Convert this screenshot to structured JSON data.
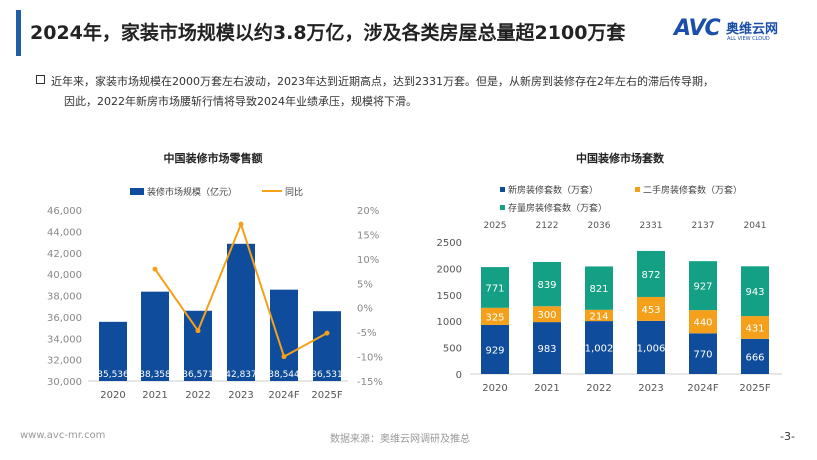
{
  "header": {
    "title": "2024年，家装市场规模以约3.8万亿，涉及各类房屋总量超2100万套",
    "logo_text": "AVC",
    "logo_cn": "奥维云网",
    "logo_en": "ALL VIEW CLOUD"
  },
  "summary": {
    "line1": "近年来，家装市场规模在2000万套左右波动，2023年达到近期高点，达到2331万套。但是，从新房到装修存在2年左右的滞后传导期，",
    "line2": "因此，2022年新房市场腰斩行情将导致2024年业绩承压，规模将下滑。"
  },
  "footer": {
    "url": "www.avc-mr.com",
    "source": "数据来源：奥维云网调研及推总",
    "page": "-3-"
  },
  "colors": {
    "blue": "#0f4c9c",
    "orange": "#f5a01a",
    "teal": "#14a084"
  },
  "chart_data": [
    {
      "type": "bar",
      "title": "中国装修市场零售额",
      "categories": [
        "2020",
        "2021",
        "2022",
        "2023",
        "2024F",
        "2025F"
      ],
      "series": [
        {
          "name": "装修市场规模（亿元）",
          "axis": "left",
          "values": [
            35536,
            38358,
            36571,
            42837,
            38544,
            36531
          ],
          "labels": [
            "35,536",
            "38,358",
            "36,571",
            "42,837",
            "38,544",
            "36,531"
          ]
        },
        {
          "name": "同比",
          "axis": "right",
          "type": "line",
          "values": [
            null,
            7.9,
            -4.7,
            17.1,
            -10.0,
            -5.2
          ]
        }
      ],
      "ylim": [
        30000,
        46000
      ],
      "yticks": [
        "30,000",
        "32,000",
        "34,000",
        "36,000",
        "38,000",
        "40,000",
        "42,000",
        "44,000",
        "46,000"
      ],
      "y2lim": [
        -15,
        20
      ],
      "y2ticks": [
        "-15%",
        "-10%",
        "-5%",
        "0%",
        "5%",
        "10%",
        "15%",
        "20%"
      ],
      "legend": "top"
    },
    {
      "type": "bar",
      "stacked": true,
      "title": "中国装修市场套数",
      "categories": [
        "2020",
        "2021",
        "2022",
        "2023",
        "2024F",
        "2025F"
      ],
      "series": [
        {
          "name": "新房装修套数（万套）",
          "values": [
            929,
            983,
            1002,
            1006,
            770,
            666
          ],
          "labels": [
            "929",
            "983",
            "1,002",
            "1,006",
            "770",
            "666"
          ]
        },
        {
          "name": "二手房装修套数（万套）",
          "values": [
            325,
            300,
            214,
            453,
            440,
            431
          ],
          "labels": [
            "325",
            "300",
            "214",
            "453",
            "440",
            "431"
          ]
        },
        {
          "name": "存量房装修套数（万套）",
          "values": [
            771,
            839,
            821,
            872,
            927,
            943
          ],
          "labels": [
            "771",
            "839",
            "821",
            "872",
            "927",
            "943"
          ]
        }
      ],
      "totals": [
        "2025",
        "2122",
        "2036",
        "2331",
        "2137",
        "2041"
      ],
      "ylim": [
        0,
        2500
      ],
      "yticks": [
        "0",
        "500",
        "1000",
        "1500",
        "2000",
        "2500"
      ],
      "legend": "top"
    }
  ]
}
